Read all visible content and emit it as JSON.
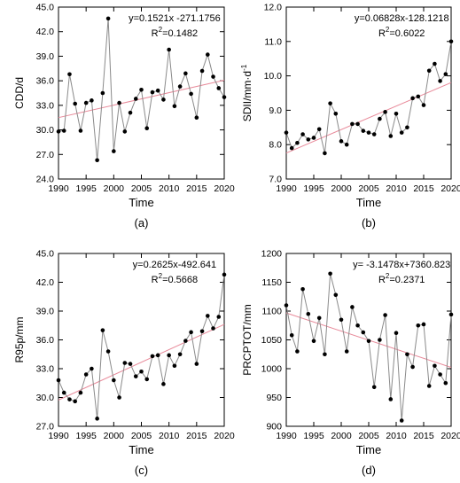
{
  "chart_data": [
    {
      "type": "line",
      "caption": "(a)",
      "title": "",
      "xlabel": "Time",
      "ylabel": "CDD/d",
      "xlim": [
        1990,
        2020
      ],
      "ylim": [
        24.0,
        45.0
      ],
      "xticks": [
        1990,
        1995,
        2000,
        2005,
        2010,
        2015,
        2020
      ],
      "yticks": [
        24.0,
        27.0,
        30.0,
        33.0,
        36.0,
        39.0,
        42.0,
        45.0
      ],
      "ytick_labels": [
        "24.0",
        "27.0",
        "30.0",
        "33.0",
        "36.0",
        "39.0",
        "42.0",
        "45.0"
      ],
      "equation": "y=0.1521x -271.1756",
      "r2_prefix": "R",
      "r2_sup": "2",
      "r2_value": "=0.1482",
      "trend": {
        "slope": 0.1521,
        "intercept": -271.1756
      },
      "x": [
        1990,
        1991,
        1992,
        1993,
        1994,
        1995,
        1996,
        1997,
        1998,
        1999,
        2000,
        2001,
        2002,
        2003,
        2004,
        2005,
        2006,
        2007,
        2008,
        2009,
        2010,
        2011,
        2012,
        2013,
        2014,
        2015,
        2016,
        2017,
        2018,
        2019,
        2020
      ],
      "values": [
        29.8,
        29.9,
        36.8,
        33.2,
        29.9,
        33.3,
        33.6,
        26.3,
        34.5,
        43.6,
        27.4,
        33.3,
        29.8,
        32.1,
        33.8,
        34.9,
        30.2,
        34.6,
        34.8,
        33.7,
        39.8,
        32.9,
        35.3,
        36.9,
        34.4,
        31.5,
        37.2,
        39.2,
        36.5,
        35.1,
        34.0
      ]
    },
    {
      "type": "line",
      "caption": "(b)",
      "title": "",
      "xlabel": "Time",
      "ylabel": "SDII/mm·d",
      "ylabel_sup": "-1",
      "xlim": [
        1990,
        2020
      ],
      "ylim": [
        7.0,
        12.0
      ],
      "xticks": [
        1990,
        1995,
        2000,
        2005,
        2010,
        2015,
        2020
      ],
      "yticks": [
        7.0,
        8.0,
        9.0,
        10.0,
        11.0,
        12.0
      ],
      "ytick_labels": [
        "7.0",
        "8.0",
        "9.0",
        "10.0",
        "11.0",
        "12.0"
      ],
      "equation": "y=0.06828x-128.1218",
      "r2_prefix": "R",
      "r2_sup": "2",
      "r2_value": "=0.6022",
      "trend": {
        "slope": 0.06828,
        "intercept": -128.1218
      },
      "x": [
        1990,
        1991,
        1992,
        1993,
        1994,
        1995,
        1996,
        1997,
        1998,
        1999,
        2000,
        2001,
        2002,
        2003,
        2004,
        2005,
        2006,
        2007,
        2008,
        2009,
        2010,
        2011,
        2012,
        2013,
        2014,
        2015,
        2016,
        2017,
        2018,
        2019,
        2020
      ],
      "values": [
        8.35,
        7.9,
        8.05,
        8.3,
        8.15,
        8.2,
        8.45,
        7.75,
        9.2,
        8.9,
        8.1,
        8.0,
        8.6,
        8.6,
        8.4,
        8.35,
        8.3,
        8.75,
        8.95,
        8.25,
        8.9,
        8.35,
        8.5,
        9.35,
        9.4,
        9.15,
        10.15,
        10.35,
        9.85,
        10.05,
        11.0
      ]
    },
    {
      "type": "line",
      "caption": "(c)",
      "title": "",
      "xlabel": "Time",
      "ylabel": "R95p/mm",
      "xlim": [
        1990,
        2020
      ],
      "ylim": [
        27.0,
        45.0
      ],
      "xticks": [
        1990,
        1995,
        2000,
        2005,
        2010,
        2015,
        2020
      ],
      "yticks": [
        27.0,
        30.0,
        33.0,
        36.0,
        39.0,
        42.0,
        45.0
      ],
      "ytick_labels": [
        "27.0",
        "30.0",
        "33.0",
        "36.0",
        "39.0",
        "42.0",
        "45.0"
      ],
      "equation": "y=0.2625x-492.641",
      "r2_prefix": "R",
      "r2_sup": "2",
      "r2_value": "=0.5668",
      "trend": {
        "slope": 0.2625,
        "intercept": -492.641
      },
      "x": [
        1990,
        1991,
        1992,
        1993,
        1994,
        1995,
        1996,
        1997,
        1998,
        1999,
        2000,
        2001,
        2002,
        2003,
        2004,
        2005,
        2006,
        2007,
        2008,
        2009,
        2010,
        2011,
        2012,
        2013,
        2014,
        2015,
        2016,
        2017,
        2018,
        2019,
        2020
      ],
      "values": [
        31.8,
        30.5,
        29.8,
        29.6,
        30.5,
        32.4,
        33.0,
        27.8,
        37.0,
        34.8,
        31.8,
        30.0,
        33.6,
        33.5,
        32.2,
        32.7,
        31.9,
        34.3,
        34.4,
        31.4,
        34.4,
        33.3,
        34.5,
        35.9,
        36.8,
        33.5,
        36.9,
        38.5,
        37.2,
        38.4,
        42.8
      ]
    },
    {
      "type": "line",
      "caption": "(d)",
      "title": "",
      "xlabel": "Time",
      "ylabel": "PRCPTOT/mm",
      "xlim": [
        1990,
        2020
      ],
      "ylim": [
        900,
        1200
      ],
      "xticks": [
        1990,
        1995,
        2000,
        2005,
        2010,
        2015,
        2020
      ],
      "yticks": [
        900,
        950,
        1000,
        1050,
        1100,
        1150,
        1200
      ],
      "ytick_labels": [
        "900",
        "950",
        "1000",
        "1050",
        "1100",
        "1150",
        "1200"
      ],
      "equation": "y= -3.1478x+7360.823",
      "r2_prefix": "R",
      "r2_sup": "2",
      "r2_value": "=0.2371",
      "trend": {
        "slope": -3.1478,
        "intercept": 7360.823
      },
      "x": [
        1990,
        1991,
        1992,
        1993,
        1994,
        1995,
        1996,
        1997,
        1998,
        1999,
        2000,
        2001,
        2002,
        2003,
        2004,
        2005,
        2006,
        2007,
        2008,
        2009,
        2010,
        2011,
        2012,
        2013,
        2014,
        2015,
        2016,
        2017,
        2018,
        2019,
        2020
      ],
      "values": [
        1110,
        1058,
        1030,
        1138,
        1095,
        1048,
        1088,
        1025,
        1165,
        1128,
        1085,
        1030,
        1107,
        1075,
        1063,
        1048,
        968,
        1050,
        1093,
        947,
        1062,
        910,
        1025,
        1003,
        1075,
        1077,
        970,
        1005,
        990,
        975,
        1094
      ]
    }
  ]
}
